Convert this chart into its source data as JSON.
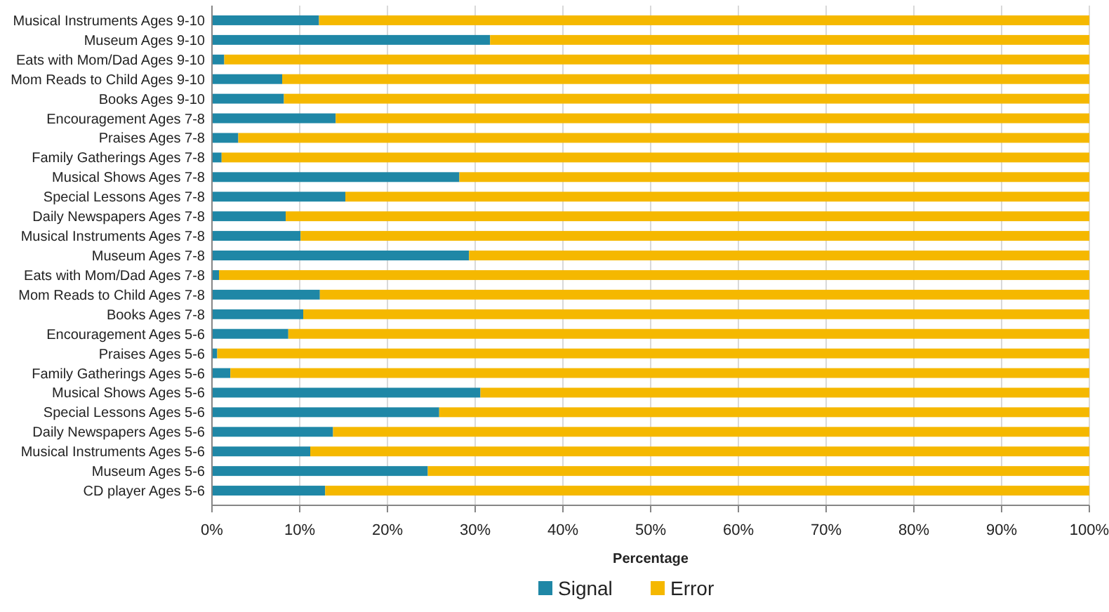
{
  "chart_data": {
    "type": "bar",
    "orientation": "horizontal",
    "stacked": true,
    "categories": [
      "Musical Instruments Ages 9-10",
      "Museum Ages 9-10",
      "Eats with Mom/Dad Ages 9-10",
      "Mom Reads to Child Ages 9-10",
      "Books Ages 9-10",
      "Encouragement Ages 7-8",
      "Praises Ages 7-8",
      "Family Gatherings Ages 7-8",
      "Musical Shows Ages 7-8",
      "Special Lessons Ages 7-8",
      "Daily Newspapers Ages 7-8",
      "Musical Instruments Ages 7-8",
      "Museum Ages 7-8",
      "Eats with Mom/Dad Ages 7-8",
      "Mom Reads to Child Ages 7-8",
      "Books Ages 7-8",
      "Encouragement Ages 5-6",
      "Praises Ages 5-6",
      "Family Gatherings Ages 5-6",
      "Musical Shows Ages 5-6",
      "Special Lessons Ages 5-6",
      "Daily Newspapers Ages 5-6",
      "Musical Instruments Ages 5-6",
      "Museum  Ages 5-6",
      "CD player Ages 5-6"
    ],
    "series": [
      {
        "name": "Signal",
        "color": "#1f87a6",
        "values": [
          12.2,
          31.7,
          1.4,
          8.0,
          8.2,
          14.1,
          3.0,
          1.1,
          28.2,
          15.2,
          8.4,
          10.1,
          29.3,
          0.8,
          12.3,
          10.4,
          8.7,
          0.6,
          2.1,
          30.6,
          25.9,
          13.8,
          11.2,
          24.6,
          12.9
        ]
      },
      {
        "name": "Error",
        "color": "#f5b800",
        "values": [
          87.8,
          68.3,
          98.6,
          92.0,
          91.8,
          85.9,
          97.0,
          98.9,
          71.8,
          84.8,
          91.6,
          89.9,
          70.7,
          99.2,
          87.7,
          89.6,
          91.3,
          99.4,
          97.9,
          69.4,
          74.1,
          86.2,
          88.8,
          75.4,
          87.1
        ]
      }
    ],
    "xlabel": "Percentage",
    "xlim": [
      0,
      100
    ],
    "xticks": [
      {
        "value": 0,
        "label": "0%"
      },
      {
        "value": 10,
        "label": "10%"
      },
      {
        "value": 20,
        "label": "20%"
      },
      {
        "value": 30,
        "label": "30%"
      },
      {
        "value": 40,
        "label": "40%"
      },
      {
        "value": 50,
        "label": "50%"
      },
      {
        "value": 60,
        "label": "60%"
      },
      {
        "value": 70,
        "label": "70%"
      },
      {
        "value": 80,
        "label": "80%"
      },
      {
        "value": 90,
        "label": "90%"
      },
      {
        "value": 100,
        "label": "100%"
      }
    ],
    "grid": "x",
    "legend": "bottom"
  }
}
